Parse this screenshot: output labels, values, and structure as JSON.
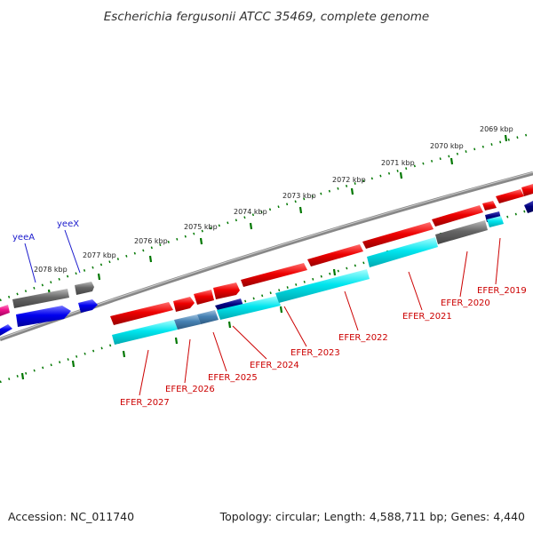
{
  "title": "Escherichia fergusonii ATCC 35469, complete genome",
  "footer": {
    "accession": "Accession: NC_011740",
    "summary": "Topology: circular; Length: 4,588,711 bp; Genes: 4,440"
  },
  "scale_labels": [
    "2069 kbp",
    "2070 kbp",
    "2071 kbp",
    "2072 kbp",
    "2073 kbp",
    "2074 kbp",
    "2075 kbp",
    "2076 kbp",
    "2077 kbp",
    "2078 kbp"
  ],
  "gene_names": [
    "yeeA",
    "yeeX"
  ],
  "locus_tags": [
    "EFER_2019",
    "EFER_2020",
    "EFER_2021",
    "EFER_2022",
    "EFER_2023",
    "EFER_2024",
    "EFER_2025",
    "EFER_2026",
    "EFER_2027"
  ],
  "colors": {
    "cds_red": "#ee0000",
    "rna_cyan": "#00e5ee",
    "gene_grey": "#666666",
    "gene_blue": "#0000ee",
    "steel_blue": "#4682b4",
    "navy": "#000080",
    "magenta": "#ee1289",
    "tick_green": "#007700",
    "backbone": "#888888"
  }
}
